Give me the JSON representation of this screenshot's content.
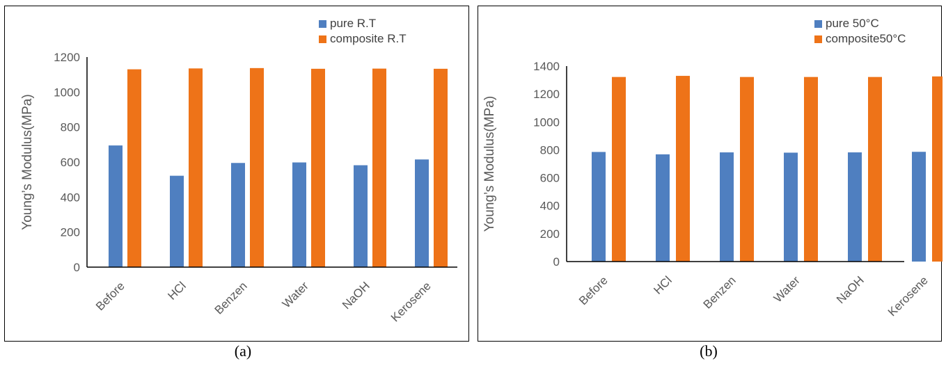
{
  "colors": {
    "pure": "#4f7fc0",
    "composite": "#ee7318",
    "axis": "#000000",
    "text": "#595959"
  },
  "chart_data": [
    {
      "type": "bar",
      "panel": "a",
      "ylabel": "Young’s Modulus(MPa)",
      "ylim": [
        0,
        1200
      ],
      "yticks": [
        0,
        200,
        400,
        600,
        800,
        1000,
        1200
      ],
      "categories": [
        "Before",
        "HCl",
        "Benzen",
        "Water",
        "NaOH",
        "Kerosene"
      ],
      "series": [
        {
          "name": "pure R.T",
          "values": [
            695,
            522,
            595,
            598,
            582,
            615
          ]
        },
        {
          "name": "composite R.T",
          "values": [
            1130,
            1135,
            1137,
            1133,
            1134,
            1133
          ]
        }
      ],
      "legend": "top-right",
      "grid": false
    },
    {
      "type": "bar",
      "panel": "b",
      "ylabel": "Young’s Modulus(MPa)",
      "ylim": [
        0,
        1400
      ],
      "yticks": [
        0,
        200,
        400,
        600,
        800,
        1000,
        1200,
        1400
      ],
      "categories": [
        "Before",
        "HCl",
        "Benzen",
        "Water",
        "NaOH",
        "Kerosene"
      ],
      "series": [
        {
          "name": "pure 50°C",
          "values": [
            785,
            768,
            782,
            780,
            782,
            786
          ]
        },
        {
          "name": "composite50°C",
          "values": [
            1322,
            1330,
            1322,
            1322,
            1322,
            1326
          ]
        }
      ],
      "legend": "top-right",
      "grid": false
    }
  ],
  "captions": {
    "a": "(a)",
    "b": "(b)"
  }
}
